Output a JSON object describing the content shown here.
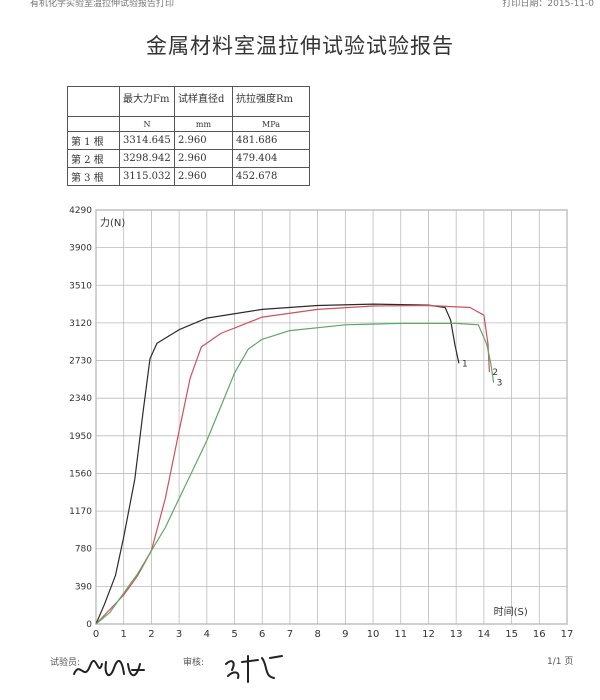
{
  "header": {
    "left": "有机化学实验室温拉伸试验报告打印",
    "right": "打印日期：2015-11-0"
  },
  "report": {
    "title": "金属材料室温拉伸试验试验报告"
  },
  "table": {
    "headers": [
      "",
      "最大力Fm",
      "试样直径d",
      "抗拉强度Rm"
    ],
    "units": [
      "",
      "N",
      "mm",
      "MPa"
    ],
    "rows": [
      [
        "第 1 根",
        "3314.645",
        "2.960",
        "481.686"
      ],
      [
        "第 2 根",
        "3298.942",
        "2.960",
        "479.404"
      ],
      [
        "第 3 根",
        "3115.032",
        "2.960",
        "452.678"
      ]
    ]
  },
  "chart_data": {
    "type": "line",
    "xlabel": "时间(S)",
    "ylabel": "力(N)",
    "xlim": [
      0,
      17
    ],
    "ylim": [
      0,
      4290
    ],
    "x_ticks": [
      "0",
      "1",
      "2",
      "3",
      "4",
      "5",
      "6",
      "7",
      "8",
      "9",
      "10",
      "11",
      "12",
      "13",
      "14",
      "15",
      "16",
      "17"
    ],
    "y_ticks": [
      "0",
      "390",
      "780",
      "1170",
      "1560",
      "1950",
      "2340",
      "2730",
      "3120",
      "3510",
      "3900",
      "4290"
    ],
    "grid": true,
    "series": [
      {
        "name": "1",
        "color": "#2b2b2b",
        "points": [
          [
            0,
            0
          ],
          [
            0.3,
            200
          ],
          [
            0.7,
            500
          ],
          [
            1.0,
            900
          ],
          [
            1.4,
            1500
          ],
          [
            1.7,
            2200
          ],
          [
            1.95,
            2750
          ],
          [
            2.2,
            2910
          ],
          [
            3.0,
            3050
          ],
          [
            4.0,
            3170
          ],
          [
            6.0,
            3260
          ],
          [
            8.0,
            3300
          ],
          [
            10.0,
            3315
          ],
          [
            12.0,
            3305
          ],
          [
            12.6,
            3280
          ],
          [
            12.8,
            3150
          ],
          [
            12.95,
            2900
          ],
          [
            13.1,
            2700
          ]
        ]
      },
      {
        "name": "2",
        "color": "#d0505c",
        "points": [
          [
            0,
            0
          ],
          [
            0.5,
            150
          ],
          [
            1.0,
            300
          ],
          [
            1.5,
            500
          ],
          [
            2.0,
            760
          ],
          [
            2.5,
            1300
          ],
          [
            3.0,
            2000
          ],
          [
            3.4,
            2550
          ],
          [
            3.8,
            2870
          ],
          [
            4.5,
            3010
          ],
          [
            6.0,
            3180
          ],
          [
            8.0,
            3260
          ],
          [
            10.0,
            3295
          ],
          [
            12.0,
            3300
          ],
          [
            13.5,
            3280
          ],
          [
            14.0,
            3200
          ],
          [
            14.15,
            2900
          ],
          [
            14.2,
            2610
          ]
        ]
      },
      {
        "name": "3",
        "color": "#5fa860",
        "points": [
          [
            0,
            0
          ],
          [
            0.5,
            120
          ],
          [
            1.0,
            320
          ],
          [
            1.5,
            520
          ],
          [
            2.0,
            760
          ],
          [
            2.5,
            1000
          ],
          [
            3.0,
            1300
          ],
          [
            3.5,
            1600
          ],
          [
            4.0,
            1900
          ],
          [
            4.5,
            2250
          ],
          [
            5.0,
            2600
          ],
          [
            5.5,
            2850
          ],
          [
            6.0,
            2950
          ],
          [
            7.0,
            3040
          ],
          [
            9.0,
            3100
          ],
          [
            11.0,
            3115
          ],
          [
            13.0,
            3115
          ],
          [
            13.8,
            3100
          ],
          [
            14.1,
            2900
          ],
          [
            14.25,
            2700
          ],
          [
            14.35,
            2500
          ]
        ]
      }
    ]
  },
  "footer": {
    "tester_label": "试验员:",
    "reviewer_label": "审核:",
    "page": "1/1 页"
  }
}
